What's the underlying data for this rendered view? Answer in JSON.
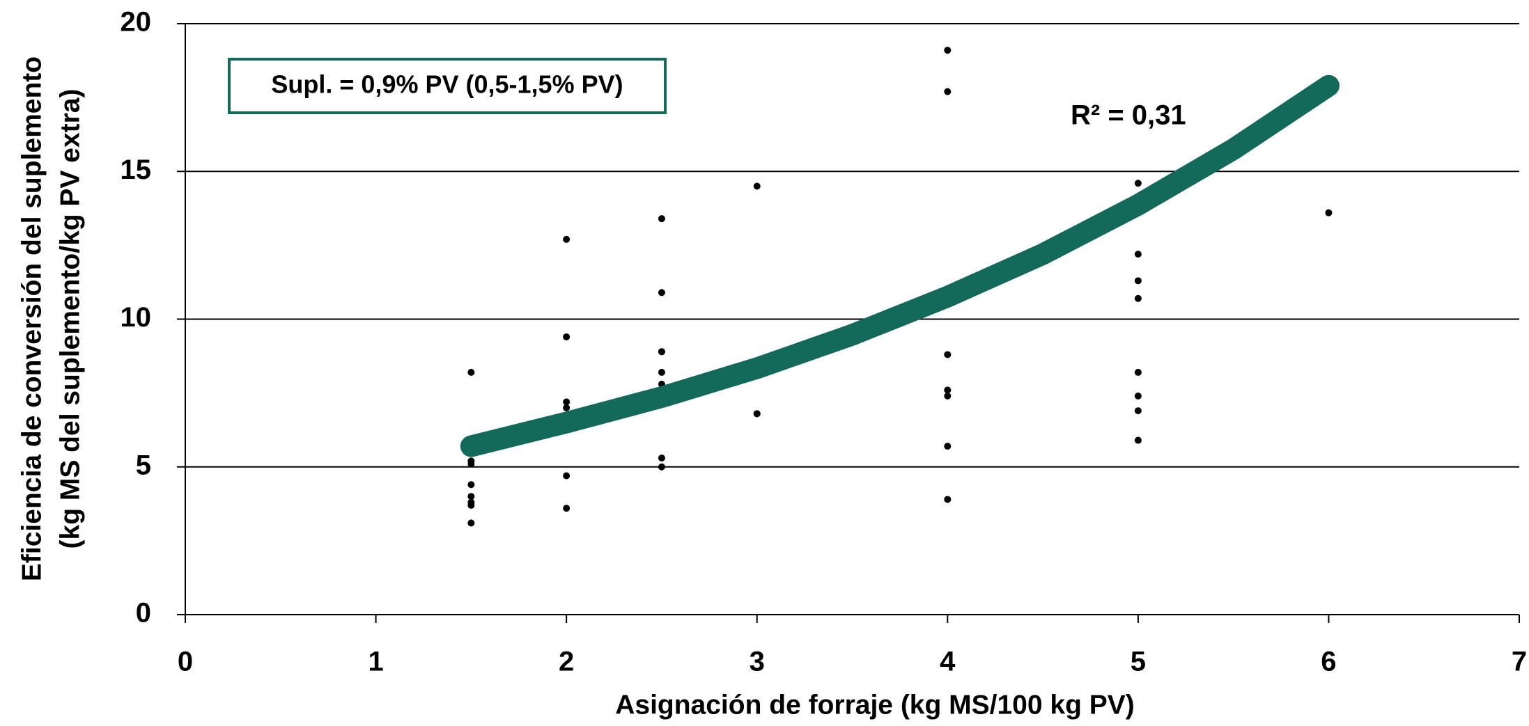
{
  "chart_data": {
    "type": "scatter",
    "xlabel": "Asignación de forraje (kg MS/100 kg PV)",
    "ylabel": [
      "Eficiencia de conversión del suplemento",
      "(kg MS del suplemento/kg PV extra)"
    ],
    "annotations": [
      "Supl. = 0,9% PV (0,5-1,5% PV)",
      "R² = 0,31"
    ],
    "x": [
      1.5,
      1.5,
      1.5,
      1.5,
      1.5,
      1.5,
      1.5,
      1.5,
      2,
      2,
      2,
      2,
      2,
      2,
      2.5,
      2.5,
      2.5,
      2.5,
      2.5,
      2.5,
      2.5,
      2.5,
      3,
      3,
      3,
      4,
      4,
      4,
      4,
      4,
      4,
      4,
      5,
      5,
      5,
      5,
      5,
      5,
      5,
      5,
      6
    ],
    "values": [
      8.2,
      5.2,
      5.1,
      4.4,
      4.0,
      3.8,
      3.7,
      3.1,
      12.7,
      9.4,
      7.2,
      7.0,
      4.7,
      3.6,
      13.4,
      10.9,
      8.9,
      8.9,
      8.2,
      7.8,
      5.3,
      5.0,
      14.5,
      6.8,
      6.8,
      19.1,
      17.7,
      8.8,
      7.6,
      7.4,
      5.7,
      3.9,
      14.6,
      12.2,
      11.3,
      10.7,
      8.2,
      7.4,
      6.9,
      5.9,
      13.6
    ],
    "color": "#000000",
    "trend": {
      "x": [
        1.5,
        2,
        2.5,
        3,
        3.5,
        4,
        4.5,
        5,
        5.5,
        6
      ],
      "values": [
        5.7,
        6.5,
        7.36,
        8.34,
        9.47,
        10.76,
        12.2,
        13.87,
        15.75,
        17.9
      ],
      "color": "#13695a"
    },
    "xlim": [
      0,
      7
    ],
    "xticks": [
      0,
      1,
      2,
      3,
      4,
      5,
      6,
      7
    ],
    "ylim": [
      0,
      20
    ],
    "yticks": [
      0,
      5,
      10,
      15,
      20
    ],
    "grid": true
  }
}
